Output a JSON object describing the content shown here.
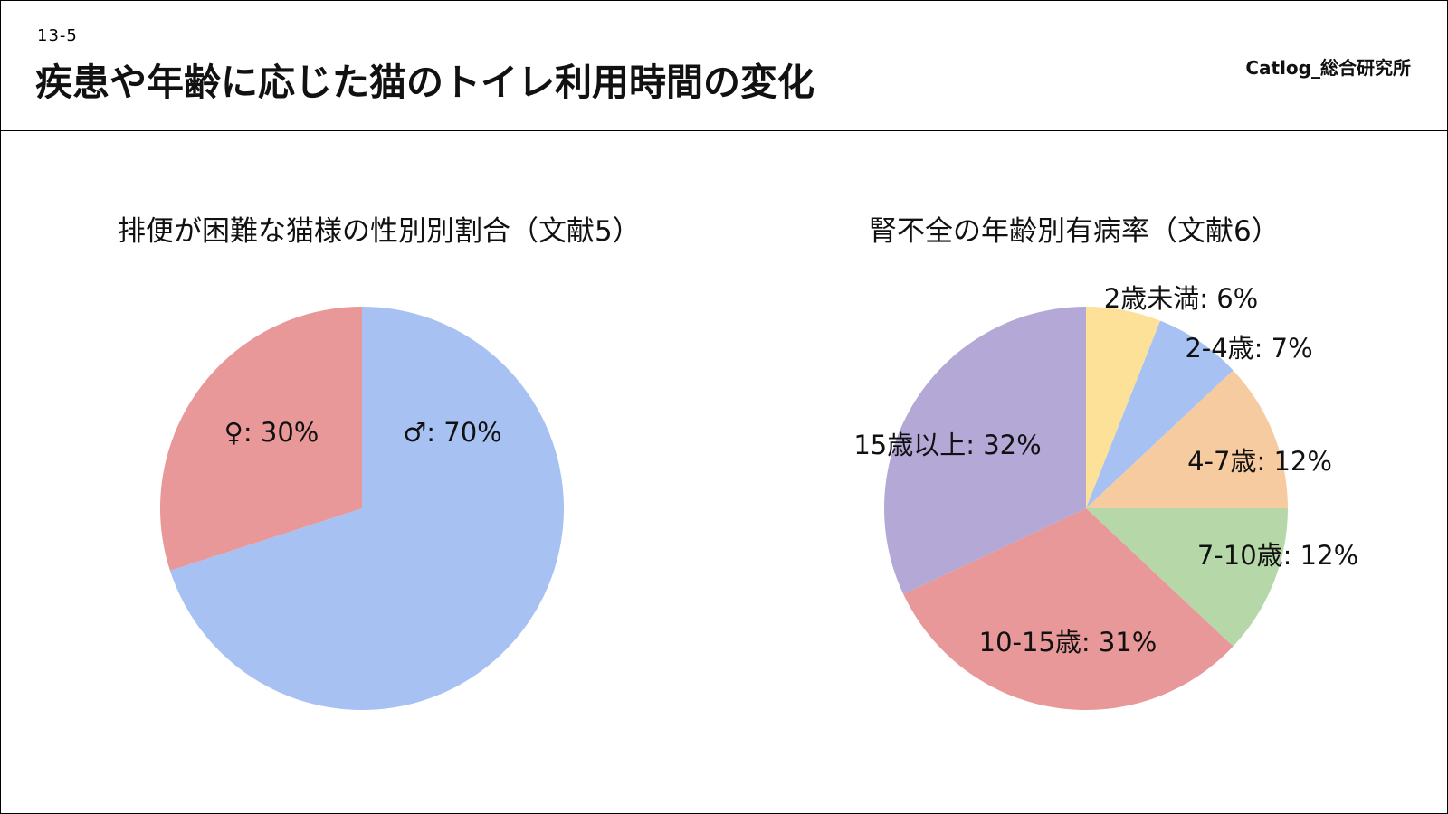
{
  "header": {
    "slide_number": "13-5",
    "title": "疾患や年齢に応じた猫のトイレ利用時間の変化",
    "brand": "Catlog_総合研究所"
  },
  "chart_data": [
    {
      "type": "pie",
      "title": "排便が困難な猫様の性別別割合（文献5）",
      "slices": [
        {
          "label": "♂",
          "value": 70,
          "display": "♂: 70%",
          "color": "#a6c1f2"
        },
        {
          "label": "♀",
          "value": 30,
          "display": "♀: 30%",
          "color": "#e89898"
        }
      ],
      "start_angle": "12 o'clock",
      "direction": "clockwise"
    },
    {
      "type": "pie",
      "title": "腎不全の年齢別有病率（文献6）",
      "slices": [
        {
          "label": "2歳未満",
          "value": 6,
          "display": "2歳未満: 6%",
          "color": "#fde199"
        },
        {
          "label": "2-4歳",
          "value": 7,
          "display": "2-4歳: 7%",
          "color": "#a6c1f2"
        },
        {
          "label": "4-7歳",
          "value": 12,
          "display": "4-7歳: 12%",
          "color": "#f7cba0"
        },
        {
          "label": "7-10歳",
          "value": 12,
          "display": "7-10歳: 12%",
          "color": "#b6d8a8"
        },
        {
          "label": "10-15歳",
          "value": 31,
          "display": "10-15歳: 31%",
          "color": "#e89898"
        },
        {
          "label": "15歳以上",
          "value": 32,
          "display": "15歳以上: 32%",
          "color": "#b4a8d6"
        }
      ],
      "start_angle": "12 o'clock",
      "direction": "clockwise"
    }
  ]
}
